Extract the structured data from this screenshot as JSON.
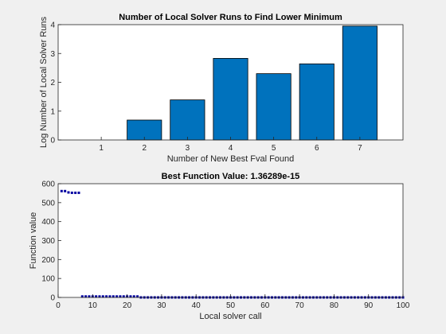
{
  "chart_data": [
    {
      "type": "bar",
      "title": "Number of Local Solver Runs to Find Lower Minimum",
      "xlabel": "Number of New Best Fval Found",
      "ylabel": "Log Number of Local Solver Runs",
      "categories": [
        "1",
        "2",
        "3",
        "4",
        "5",
        "6",
        "7"
      ],
      "values": [
        0,
        0.69,
        1.39,
        2.83,
        2.3,
        2.64,
        3.95
      ],
      "xlim": [
        0,
        8
      ],
      "ylim": [
        0,
        4
      ],
      "yticks": [
        "0",
        "1",
        "2",
        "3",
        "4"
      ],
      "bar_color": "#0072bd",
      "grid": false
    },
    {
      "type": "scatter",
      "title": "Best Function Value: 1.36289e-15",
      "xlabel": "Local solver call",
      "ylabel": "Function value",
      "xlim": [
        0,
        100
      ],
      "ylim": [
        0,
        600
      ],
      "xticks": [
        "0",
        "10",
        "20",
        "30",
        "40",
        "50",
        "60",
        "70",
        "80",
        "90",
        "100"
      ],
      "yticks": [
        "0",
        "100",
        "200",
        "300",
        "400",
        "500",
        "600"
      ],
      "series": [
        {
          "marker_color": "#0000a0",
          "x": [
            1,
            2,
            3,
            4,
            5,
            6,
            7,
            8,
            9,
            10,
            11,
            12,
            13,
            14,
            15,
            16,
            17,
            18,
            19,
            20,
            21,
            22,
            23,
            24,
            25,
            26,
            27,
            28,
            29,
            30,
            31,
            32,
            33,
            34,
            35,
            36,
            37,
            38,
            39,
            40,
            41,
            42,
            43,
            44,
            45,
            46,
            47,
            48,
            49,
            50,
            51,
            52,
            53,
            54,
            55,
            56,
            57,
            58,
            59,
            60,
            61,
            62,
            63,
            64,
            65,
            66,
            67,
            68,
            69,
            70,
            71,
            72,
            73,
            74,
            75,
            76,
            77,
            78,
            79,
            80,
            81,
            82,
            83,
            84,
            85,
            86,
            87,
            88,
            89,
            90,
            91,
            92,
            93,
            94,
            95,
            96,
            97,
            98,
            99,
            100
          ],
          "y": [
            561,
            561,
            554,
            552,
            552,
            552,
            5,
            5,
            5,
            5,
            5,
            5,
            5,
            5,
            5,
            5,
            5,
            5,
            5,
            5,
            5,
            5,
            5,
            0,
            0,
            0,
            0,
            0,
            0,
            0,
            0,
            0,
            0,
            0,
            0,
            0,
            0,
            0,
            0,
            0,
            0,
            0,
            0,
            0,
            0,
            0,
            0,
            0,
            0,
            0,
            0,
            0,
            0,
            0,
            0,
            0,
            0,
            0,
            0,
            0,
            0,
            0,
            0,
            0,
            0,
            0,
            0,
            0,
            0,
            0,
            0,
            0,
            0,
            0,
            0,
            0,
            0,
            0,
            0,
            0,
            0,
            0,
            0,
            0,
            0,
            0,
            0,
            0,
            0,
            0,
            0,
            0,
            0,
            0,
            0,
            0,
            0,
            0,
            0,
            0
          ]
        }
      ],
      "grid": false
    }
  ]
}
